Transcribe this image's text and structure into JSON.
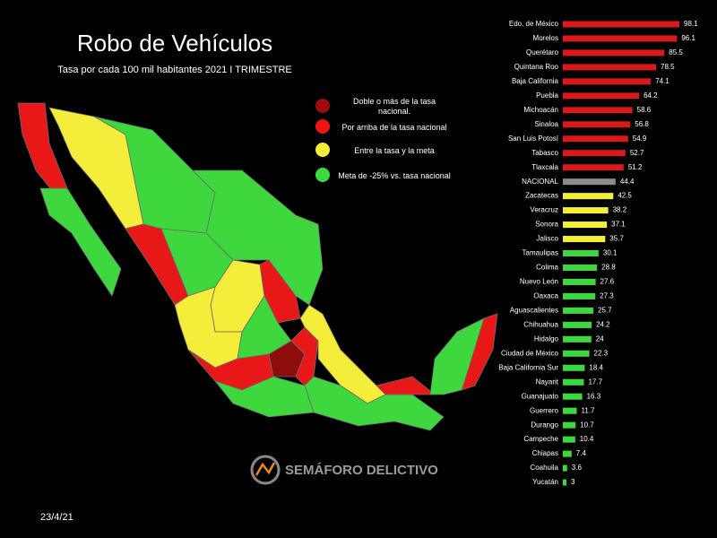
{
  "chart_data": {
    "type": "bar",
    "orientation": "horizontal",
    "title": "Robo de Vehículos",
    "subtitle": "Tasa por cada 100 mil habitantes 2021 I TRIMESTRE",
    "categories": [
      "Edo. de México",
      "Morelos",
      "Querétaro",
      "Quintana Roo",
      "Baja California",
      "Puebla",
      "Michoacán",
      "Sinaloa",
      "San Luis Potosí",
      "Tabasco",
      "Tlaxcala",
      "NACIONAL",
      "Zacatecas",
      "Veracruz",
      "Sonora",
      "Jalisco",
      "Tamaulipas",
      "Colima",
      "Nuevo León",
      "Oaxaca",
      "Aguascalientes",
      "Chihuahua",
      "Hidalgo",
      "Ciudad de México",
      "Baja California Sur",
      "Nayarit",
      "Guanajuato",
      "Guerrero",
      "Durango",
      "Campeche",
      "Chiapas",
      "Coahuila",
      "Yucatán"
    ],
    "values": [
      98.1,
      96.1,
      85.5,
      78.5,
      74.1,
      64.2,
      58.6,
      56.8,
      54.9,
      52.7,
      51.2,
      44.4,
      42.5,
      38.2,
      37.1,
      35.7,
      30.1,
      28.8,
      27.6,
      27.3,
      25.7,
      24.2,
      24,
      22.3,
      18.4,
      17.7,
      16.3,
      11.7,
      10.7,
      10.4,
      7.4,
      3.6,
      3
    ],
    "colors": [
      "#d71a1a",
      "#d71a1a",
      "#d71a1a",
      "#d71a1a",
      "#d71a1a",
      "#d71a1a",
      "#d71a1a",
      "#d71a1a",
      "#d71a1a",
      "#d71a1a",
      "#d71a1a",
      "#8c8c8c",
      "#f4ee3a",
      "#f4ee3a",
      "#f4ee3a",
      "#f4ee3a",
      "#3ed83e",
      "#3ed83e",
      "#3ed83e",
      "#3ed83e",
      "#3ed83e",
      "#3ed83e",
      "#3ed83e",
      "#3ed83e",
      "#3ed83e",
      "#3ed83e",
      "#3ed83e",
      "#3ed83e",
      "#3ed83e",
      "#3ed83e",
      "#3ed83e",
      "#3ed83e",
      "#3ed83e"
    ],
    "legend": [
      {
        "label": "Doble o más de la tasa nacional.",
        "color": "#9e0c0c"
      },
      {
        "label": "Por arriba de la tasa nacional",
        "color": "#f01414"
      },
      {
        "label": "Entre la tasa y la meta",
        "color": "#f4ee3a"
      },
      {
        "label": "Meta de -25% vs. tasa nacional",
        "color": "#3ed83e"
      }
    ],
    "watermark": "SEMÁFORO DELICTIVO",
    "date": "23/4/21"
  }
}
